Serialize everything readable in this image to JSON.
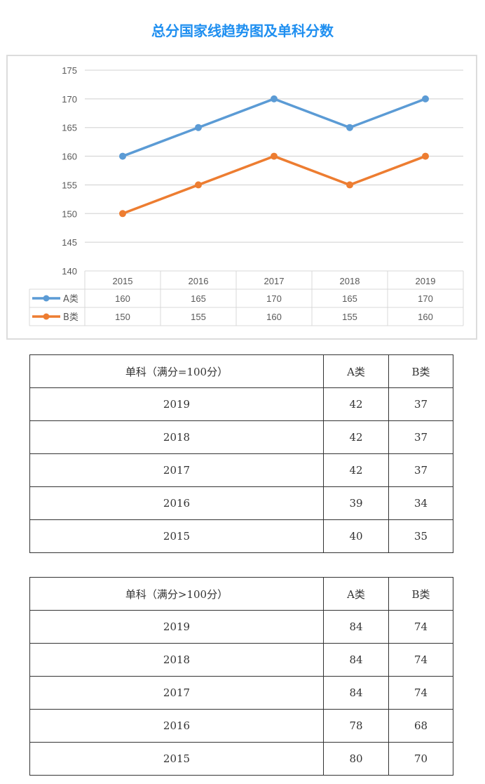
{
  "title": "总分国家线趋势图及单科分数",
  "colors": {
    "title": "#1f8ff0",
    "series_a": "#5b9bd5",
    "series_b": "#ed7d31"
  },
  "chart_data": {
    "type": "line",
    "title": "",
    "x": [
      "2015",
      "2016",
      "2017",
      "2018",
      "2019"
    ],
    "series": [
      {
        "name": "A类",
        "values": [
          160,
          165,
          170,
          165,
          170
        ],
        "color": "#5b9bd5"
      },
      {
        "name": "B类",
        "values": [
          150,
          155,
          160,
          155,
          160
        ],
        "color": "#ed7d31"
      }
    ],
    "ylim": [
      140,
      175
    ],
    "yticks": [
      140,
      145,
      150,
      155,
      160,
      165,
      170,
      175
    ],
    "grid": true,
    "legend": "data-table-bottom"
  },
  "tables": [
    {
      "headers": [
        "单科（满分=100分）",
        "A类",
        "B类"
      ],
      "rows": [
        [
          "2019",
          "42",
          "37"
        ],
        [
          "2018",
          "42",
          "37"
        ],
        [
          "2017",
          "42",
          "37"
        ],
        [
          "2016",
          "39",
          "34"
        ],
        [
          "2015",
          "40",
          "35"
        ]
      ]
    },
    {
      "headers": [
        "单科（满分>100分）",
        "A类",
        "B类"
      ],
      "rows": [
        [
          "2019",
          "84",
          "74"
        ],
        [
          "2018",
          "84",
          "74"
        ],
        [
          "2017",
          "84",
          "74"
        ],
        [
          "2016",
          "78",
          "68"
        ],
        [
          "2015",
          "80",
          "70"
        ]
      ]
    }
  ]
}
